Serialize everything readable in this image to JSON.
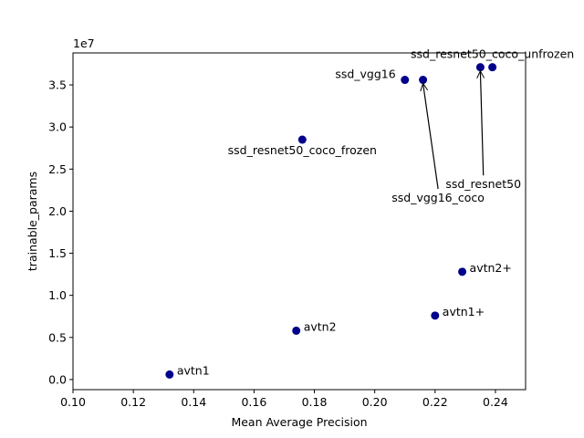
{
  "chart_data": {
    "type": "scatter",
    "title": "",
    "xlabel": "Mean Average Precision",
    "ylabel": "trainable_params",
    "y_offset_text": "1e7",
    "y_scale_factor": 10000000,
    "xlim": [
      0.1,
      0.25
    ],
    "ylim": [
      -0.12,
      3.88
    ],
    "x_ticks": [
      0.1,
      0.12,
      0.14,
      0.16,
      0.18,
      0.2,
      0.22,
      0.24
    ],
    "x_tick_labels": [
      "0.10",
      "0.12",
      "0.14",
      "0.16",
      "0.18",
      "0.20",
      "0.22",
      "0.24"
    ],
    "y_ticks": [
      0.0,
      0.5,
      1.0,
      1.5,
      2.0,
      2.5,
      3.0,
      3.5
    ],
    "y_tick_labels": [
      "0.0",
      "0.5",
      "1.0",
      "1.5",
      "2.0",
      "2.5",
      "3.0",
      "3.5"
    ],
    "grid": false,
    "legend": "none",
    "marker_color": "#00008b",
    "points": [
      {
        "label": "avtn1",
        "x": 0.132,
        "y": 0.06,
        "label_pos": "right"
      },
      {
        "label": "avtn2",
        "x": 0.174,
        "y": 0.58,
        "label_pos": "right"
      },
      {
        "label": "avtn1+",
        "x": 0.22,
        "y": 0.76,
        "label_pos": "right"
      },
      {
        "label": "avtn2+",
        "x": 0.229,
        "y": 1.28,
        "label_pos": "right"
      },
      {
        "label": "ssd_resnet50_coco_frozen",
        "x": 0.176,
        "y": 2.85,
        "label_pos": "below"
      },
      {
        "label": "ssd_vgg16",
        "x": 0.21,
        "y": 3.56,
        "label_pos": "left"
      },
      {
        "label": "ssd_vgg16_coco",
        "x": 0.216,
        "y": 3.56,
        "label_pos": "arrow",
        "text_x": 0.221,
        "text_y": 2.2
      },
      {
        "label": "ssd_resnet50",
        "x": 0.235,
        "y": 3.71,
        "label_pos": "arrow",
        "text_x": 0.236,
        "text_y": 2.36
      },
      {
        "label": "ssd_resnet50_coco_unfrozen",
        "x": 0.239,
        "y": 3.71,
        "label_pos": "above"
      }
    ]
  }
}
